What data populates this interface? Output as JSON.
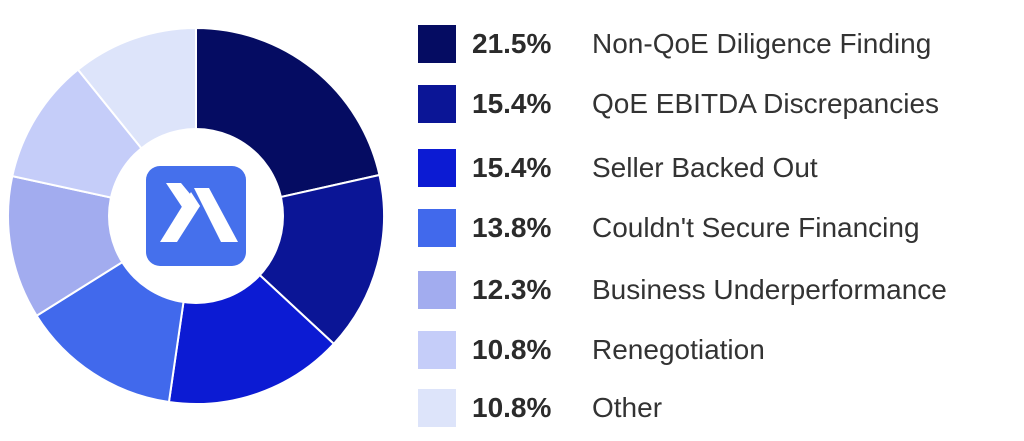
{
  "chart_data": {
    "type": "pie",
    "style": "donut",
    "title": "",
    "slices": [
      {
        "label": "Non-QoE Diligence Finding",
        "value": 21.5,
        "value_label": "21.5%",
        "color": "#050c62"
      },
      {
        "label": "QoE EBITDA Discrepancies",
        "value": 15.4,
        "value_label": "15.4%",
        "color": "#0b1596"
      },
      {
        "label": "Seller Backed Out",
        "value": 15.4,
        "value_label": "15.4%",
        "color": "#0c1bd3"
      },
      {
        "label": "Couldn't Secure Financing",
        "value": 13.8,
        "value_label": "13.8%",
        "color": "#4169ec"
      },
      {
        "label": "Business Underperformance",
        "value": 12.3,
        "value_label": "12.3%",
        "color": "#a2acef"
      },
      {
        "label": "Renegotiation",
        "value": 10.8,
        "value_label": "10.8%",
        "color": "#c5cdf9"
      },
      {
        "label": "Other",
        "value": 10.8,
        "value_label": "10.8%",
        "color": "#dde4fa"
      }
    ],
    "legend_position": "right",
    "center_logo": {
      "icon": "brand-logo-icon",
      "background": "#4570ec",
      "mark_color": "#ffffff"
    }
  }
}
